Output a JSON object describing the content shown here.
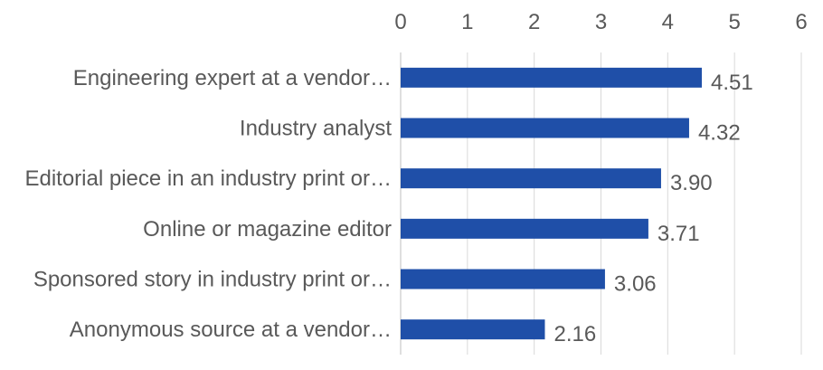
{
  "chart_data": {
    "type": "bar",
    "orientation": "horizontal",
    "title": "",
    "xlabel": "",
    "ylabel": "",
    "xlim": [
      0,
      6
    ],
    "x_ticks": [
      0,
      1,
      2,
      3,
      4,
      5,
      6
    ],
    "x_axis_position": "top",
    "grid": true,
    "legend": "none",
    "bar_color": "#1f4fa8",
    "categories": [
      "Engineering expert at a vendor…",
      "Industry analyst",
      "Editorial piece in an industry print or…",
      "Online or magazine editor",
      "Sponsored story in industry print or…",
      "Anonymous source at a vendor…"
    ],
    "values": [
      4.51,
      4.32,
      3.9,
      3.71,
      3.06,
      2.16
    ],
    "data_labels": [
      "4.51",
      "4.32",
      "3.90",
      "3.71",
      "3.06",
      "2.16"
    ]
  }
}
